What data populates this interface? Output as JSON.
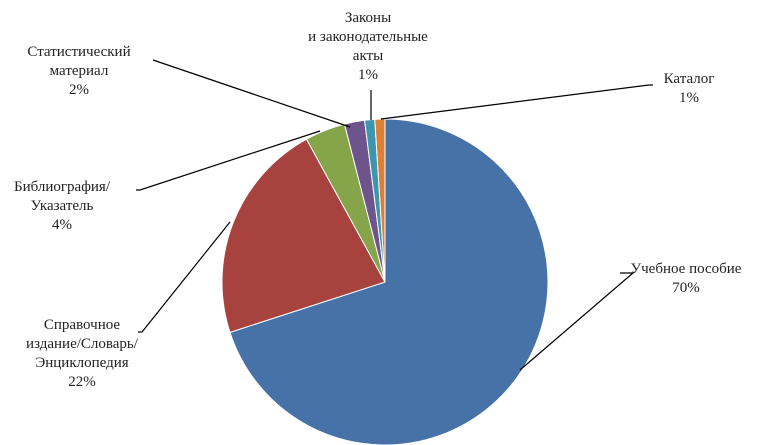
{
  "chart_data": {
    "type": "pie",
    "title": "",
    "start_angle_deg": 0,
    "direction": "clockwise",
    "slices": [
      {
        "label_lines": [
          "Учебное пособие"
        ],
        "percent_label": "70%",
        "value": 70,
        "color": "#4672A8"
      },
      {
        "label_lines": [
          "Справочное",
          "издание/Словарь/",
          "Энциклопедия"
        ],
        "percent_label": "22%",
        "value": 22,
        "color": "#A8423F"
      },
      {
        "label_lines": [
          "Библиография/",
          "Указатель"
        ],
        "percent_label": "4%",
        "value": 4,
        "color": "#86A44A"
      },
      {
        "label_lines": [
          "Статистический",
          "материал"
        ],
        "percent_label": "2%",
        "value": 2,
        "color": "#6E548D"
      },
      {
        "label_lines": [
          "Законы",
          "и законодательные",
          "акты"
        ],
        "percent_label": "1%",
        "value": 1,
        "color": "#3D96AE"
      },
      {
        "label_lines": [
          "Каталог"
        ],
        "percent_label": "1%",
        "value": 1,
        "color": "#DA8137"
      }
    ]
  }
}
